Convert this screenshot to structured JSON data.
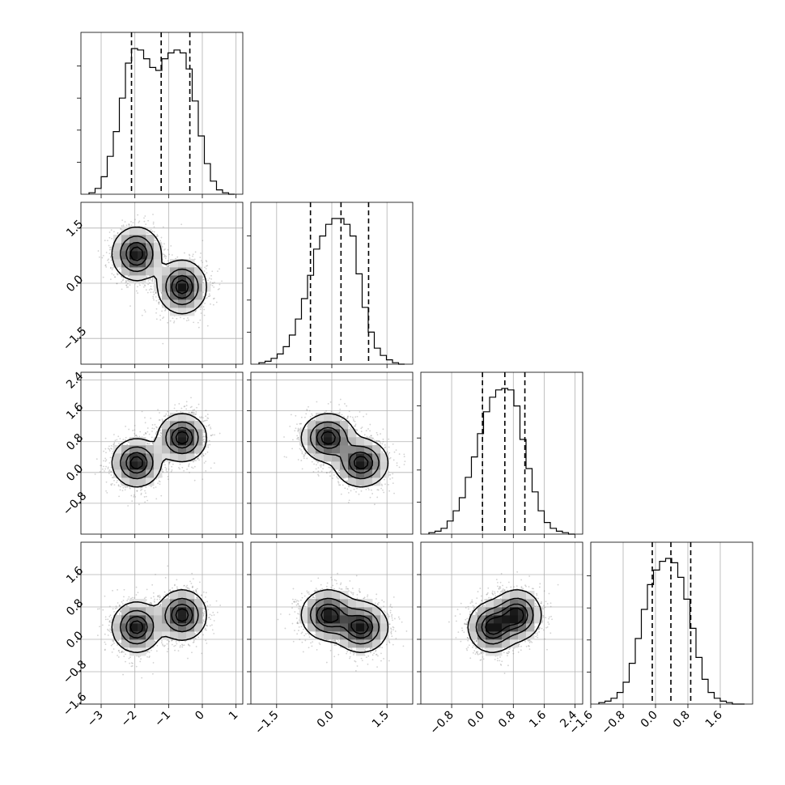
{
  "chart_data": {
    "type": "corner",
    "title": "",
    "grid": true,
    "colors": {
      "line": "#000000",
      "grid": "#b0b0b0",
      "scatter": "#7f7f7f",
      "background": "#ffffff"
    },
    "variables": [
      {
        "range": [
          -3.6,
          1.2
        ],
        "ticks": [
          -3,
          -2,
          -1,
          0,
          1
        ],
        "tick_labels": [
          "−3",
          "−2",
          "−1",
          "0",
          "1"
        ],
        "quantiles": [
          -2.1,
          -1.22,
          -0.37
        ],
        "histogram": [
          0.01,
          0.04,
          0.12,
          0.26,
          0.43,
          0.66,
          0.9,
          1.0,
          0.99,
          0.93,
          0.87,
          0.85,
          0.93,
          0.97,
          0.99,
          0.97,
          0.86,
          0.64,
          0.4,
          0.21,
          0.09,
          0.03,
          0.01,
          0.0
        ]
      },
      {
        "range": [
          -2.2,
          2.2
        ],
        "ticks": [
          -1.5,
          0.0,
          1.5
        ],
        "tick_labels": [
          "−1.5",
          "0.0",
          "1.5"
        ],
        "quantiles": [
          -0.58,
          0.25,
          1.0
        ],
        "histogram": [
          0.01,
          0.02,
          0.04,
          0.07,
          0.12,
          0.2,
          0.31,
          0.45,
          0.61,
          0.79,
          0.88,
          0.96,
          1.0,
          1.0,
          0.96,
          0.88,
          0.62,
          0.39,
          0.22,
          0.11,
          0.06,
          0.03,
          0.01,
          0.0
        ]
      },
      {
        "range": [
          -1.6,
          2.6
        ],
        "ticks": [
          -0.8,
          0.0,
          0.8,
          1.6,
          2.4
        ],
        "tick_labels": [
          "−0.8",
          "0.0",
          "0.8",
          "1.6",
          "2.4"
        ],
        "quantiles": [
          0.0,
          0.58,
          1.1
        ],
        "histogram": [
          0.01,
          0.02,
          0.04,
          0.09,
          0.16,
          0.25,
          0.39,
          0.53,
          0.69,
          0.84,
          0.94,
          0.99,
          1.0,
          0.99,
          0.88,
          0.65,
          0.45,
          0.29,
          0.16,
          0.08,
          0.04,
          0.02,
          0.01,
          0.0
        ]
      },
      {
        "range": [
          -1.6,
          2.4
        ],
        "ticks": [
          -1.6,
          -0.8,
          0.0,
          0.8,
          1.6
        ],
        "tick_labels": [
          "−1.6",
          "−0.8",
          "0.0",
          "0.8",
          "1.6"
        ],
        "quantiles": [
          -0.08,
          0.38,
          0.87
        ],
        "histogram": [
          0.01,
          0.02,
          0.04,
          0.08,
          0.15,
          0.28,
          0.45,
          0.65,
          0.82,
          0.92,
          0.98,
          1.0,
          0.97,
          0.87,
          0.72,
          0.52,
          0.32,
          0.17,
          0.08,
          0.04,
          0.02,
          0.01,
          0.0,
          0.0
        ]
      }
    ],
    "modes": [
      {
        "center": [
          -1.95,
          0.8,
          0.25,
          0.3
        ],
        "sd": [
          0.35,
          0.35,
          0.3,
          0.3
        ]
      },
      {
        "center": [
          -0.6,
          -0.1,
          0.9,
          0.6
        ],
        "sd": [
          0.35,
          0.35,
          0.3,
          0.3
        ]
      }
    ],
    "contour_levels": [
      0.118,
      0.393,
      0.675,
      0.865
    ]
  }
}
